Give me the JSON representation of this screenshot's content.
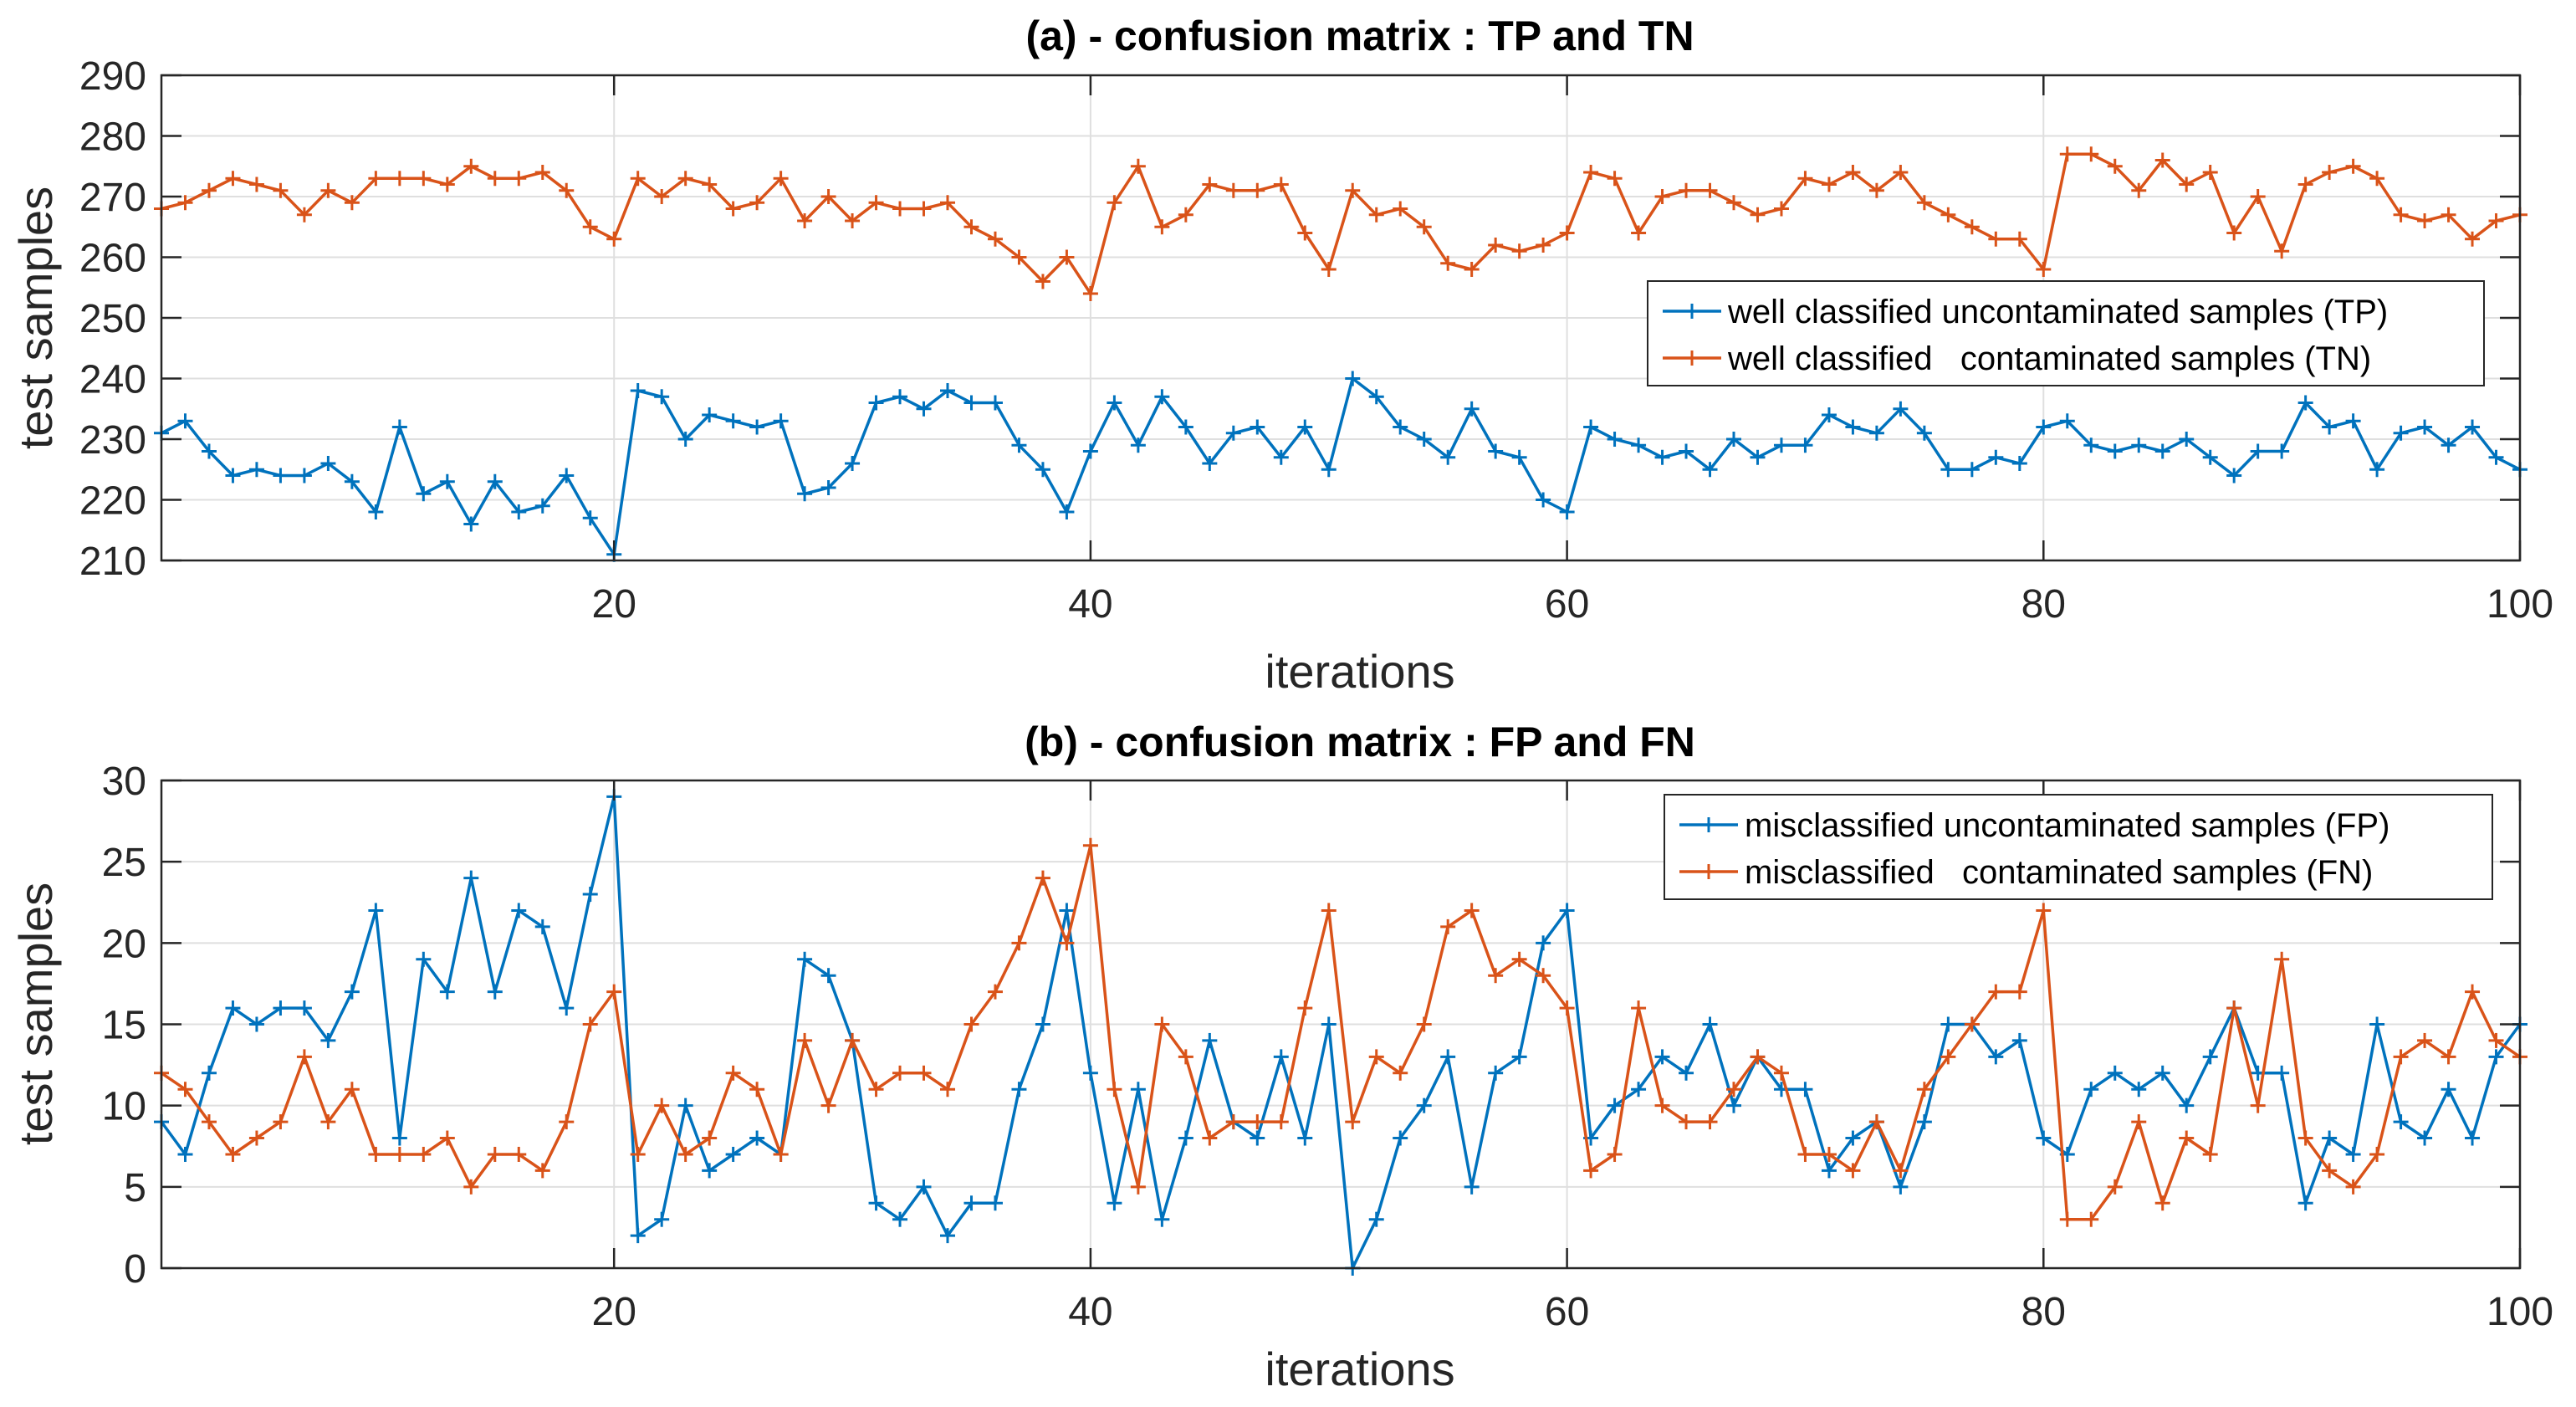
{
  "colors": {
    "series1": "#0072BD",
    "series2": "#D95319",
    "axis": "#262626",
    "grid": "#DFDFDF"
  },
  "chart_data": [
    {
      "type": "line",
      "title": "(a) - confusion matrix : TP and TN",
      "xlabel": "iterations",
      "ylabel": "test samples",
      "xlim": [
        1,
        100
      ],
      "ylim": [
        210,
        290
      ],
      "xticks": [
        20,
        40,
        60,
        80,
        100
      ],
      "yticks": [
        210,
        220,
        230,
        240,
        250,
        260,
        270,
        280,
        290
      ],
      "grid": true,
      "legend_position": "right",
      "x_start": 1,
      "series": [
        {
          "name": "well classified uncontaminated samples (TP)",
          "color_key": "series1",
          "values": [
            231,
            233,
            228,
            224,
            225,
            224,
            224,
            226,
            223,
            218,
            232,
            221,
            223,
            216,
            223,
            218,
            219,
            224,
            217,
            211,
            238,
            237,
            230,
            234,
            233,
            232,
            233,
            221,
            222,
            226,
            236,
            237,
            235,
            238,
            236,
            236,
            229,
            225,
            218,
            228,
            236,
            229,
            237,
            232,
            226,
            231,
            232,
            227,
            232,
            225,
            240,
            237,
            232,
            230,
            227,
            235,
            228,
            227,
            220,
            218,
            232,
            230,
            229,
            227,
            228,
            225,
            230,
            227,
            229,
            229,
            234,
            232,
            231,
            235,
            231,
            225,
            225,
            227,
            226,
            232,
            233,
            229,
            228,
            229,
            228,
            230,
            227,
            224,
            228,
            228,
            236,
            232,
            233,
            225,
            231,
            232,
            229,
            232,
            227,
            225
          ]
        },
        {
          "name": "well classified   contaminated samples (TN)",
          "color_key": "series2",
          "values": [
            268,
            269,
            271,
            273,
            272,
            271,
            267,
            271,
            269,
            273,
            273,
            273,
            272,
            275,
            273,
            273,
            274,
            271,
            265,
            263,
            273,
            270,
            273,
            272,
            268,
            269,
            273,
            266,
            270,
            266,
            269,
            268,
            268,
            269,
            265,
            263,
            260,
            256,
            260,
            254,
            269,
            275,
            265,
            267,
            272,
            271,
            271,
            272,
            264,
            258,
            271,
            267,
            268,
            265,
            259,
            258,
            262,
            261,
            262,
            264,
            274,
            273,
            264,
            270,
            271,
            271,
            269,
            267,
            268,
            273,
            272,
            274,
            271,
            274,
            269,
            267,
            265,
            263,
            263,
            258,
            277,
            277,
            275,
            271,
            276,
            272,
            274,
            264,
            270,
            261,
            272,
            274,
            275,
            273,
            267,
            266,
            267,
            263,
            266,
            267
          ]
        }
      ]
    },
    {
      "type": "line",
      "title": "(b) - confusion matrix : FP and FN",
      "xlabel": "iterations",
      "ylabel": "test samples",
      "xlim": [
        1,
        100
      ],
      "ylim": [
        0,
        30
      ],
      "xticks": [
        20,
        40,
        60,
        80,
        100
      ],
      "yticks": [
        0,
        5,
        10,
        15,
        20,
        25,
        30
      ],
      "grid": true,
      "legend_position": "top-right",
      "x_start": 1,
      "series": [
        {
          "name": "misclassified uncontaminated samples (FP)",
          "color_key": "series1",
          "values": [
            9,
            7,
            12,
            16,
            15,
            16,
            16,
            14,
            17,
            22,
            8,
            19,
            17,
            24,
            17,
            22,
            21,
            16,
            23,
            29,
            2,
            3,
            10,
            6,
            7,
            8,
            7,
            19,
            18,
            14,
            4,
            3,
            5,
            2,
            4,
            4,
            11,
            15,
            22,
            12,
            4,
            11,
            3,
            8,
            14,
            9,
            8,
            13,
            8,
            15,
            0,
            3,
            8,
            10,
            13,
            5,
            12,
            13,
            20,
            22,
            8,
            10,
            11,
            13,
            12,
            15,
            10,
            13,
            11,
            11,
            6,
            8,
            9,
            5,
            9,
            15,
            15,
            13,
            14,
            8,
            7,
            11,
            12,
            11,
            12,
            10,
            13,
            16,
            12,
            12,
            4,
            8,
            7,
            15,
            9,
            8,
            11,
            8,
            13,
            15
          ]
        },
        {
          "name": "misclassified   contaminated samples (FN)",
          "color_key": "series2",
          "values": [
            12,
            11,
            9,
            7,
            8,
            9,
            13,
            9,
            11,
            7,
            7,
            7,
            8,
            5,
            7,
            7,
            6,
            9,
            15,
            17,
            7,
            10,
            7,
            8,
            12,
            11,
            7,
            14,
            10,
            14,
            11,
            12,
            12,
            11,
            15,
            17,
            20,
            24,
            20,
            26,
            11,
            5,
            15,
            13,
            8,
            9,
            9,
            9,
            16,
            22,
            9,
            13,
            12,
            15,
            21,
            22,
            18,
            19,
            18,
            16,
            6,
            7,
            16,
            10,
            9,
            9,
            11,
            13,
            12,
            7,
            7,
            6,
            9,
            6,
            11,
            13,
            15,
            17,
            17,
            22,
            3,
            3,
            5,
            9,
            4,
            8,
            7,
            16,
            10,
            19,
            8,
            6,
            5,
            7,
            13,
            14,
            13,
            17,
            14,
            13
          ]
        }
      ]
    }
  ]
}
